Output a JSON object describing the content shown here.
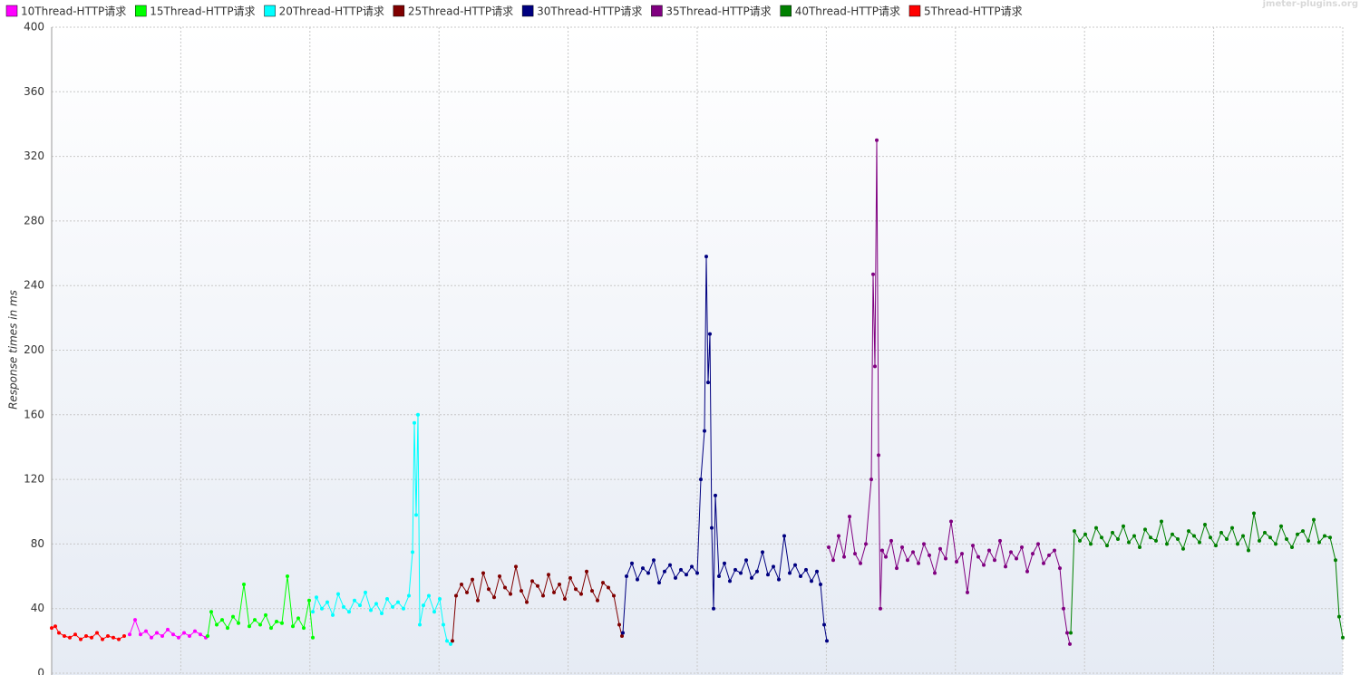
{
  "chart_data": {
    "type": "line",
    "watermark": "jmeter-plugins.org",
    "y_label": "Response times in ms",
    "ylim": [
      0,
      400
    ],
    "yticks": [
      0,
      40,
      80,
      120,
      160,
      200,
      240,
      280,
      320,
      360,
      400
    ],
    "xlim": [
      0,
      1424
    ],
    "xticks": [
      0,
      142.4,
      284.8,
      427.2,
      569.6,
      712,
      854.4,
      996.8,
      1139.2,
      1281.6,
      1424
    ],
    "grid": true,
    "legend": "top",
    "series": [
      {
        "name": "10Thread-HTTP请求",
        "color": "#ff00ff",
        "x": [
          86,
          92,
          98,
          104,
          110,
          116,
          122,
          128,
          134,
          140,
          146,
          152,
          158,
          164,
          170
        ],
        "values": [
          24,
          33,
          24,
          26,
          22,
          25,
          23,
          27,
          24,
          22,
          25,
          23,
          26,
          24,
          22
        ]
      },
      {
        "name": "15Thread-HTTP请求",
        "color": "#00ff00",
        "x": [
          172,
          176,
          182,
          188,
          194,
          200,
          206,
          212,
          218,
          224,
          230,
          236,
          242,
          248,
          254,
          260,
          266,
          272,
          278,
          284,
          288
        ],
        "values": [
          23,
          38,
          30,
          33,
          28,
          35,
          31,
          55,
          29,
          33,
          30,
          36,
          28,
          32,
          31,
          60,
          29,
          34,
          28,
          45,
          22
        ]
      },
      {
        "name": "20Thread-HTTP请求",
        "color": "#00ffff",
        "x": [
          288,
          292,
          298,
          304,
          310,
          316,
          322,
          328,
          334,
          340,
          346,
          352,
          358,
          364,
          370,
          376,
          382,
          388,
          394,
          398,
          400,
          402,
          404,
          406,
          410,
          416,
          422,
          428,
          432,
          436,
          440
        ],
        "values": [
          38,
          47,
          40,
          44,
          36,
          49,
          41,
          38,
          45,
          42,
          50,
          39,
          43,
          37,
          46,
          41,
          44,
          40,
          48,
          75,
          155,
          98,
          160,
          30,
          42,
          48,
          38,
          46,
          30,
          20,
          18
        ]
      },
      {
        "name": "25Thread-HTTP请求",
        "color": "#800000",
        "x": [
          442,
          446,
          452,
          458,
          464,
          470,
          476,
          482,
          488,
          494,
          500,
          506,
          512,
          518,
          524,
          530,
          536,
          542,
          548,
          554,
          560,
          566,
          572,
          578,
          584,
          590,
          596,
          602,
          608,
          614,
          620,
          626,
          629
        ],
        "values": [
          20,
          48,
          55,
          50,
          58,
          45,
          62,
          52,
          47,
          60,
          53,
          49,
          66,
          51,
          44,
          57,
          54,
          48,
          61,
          50,
          55,
          46,
          59,
          52,
          49,
          63,
          51,
          45,
          56,
          53,
          48,
          30,
          23
        ]
      },
      {
        "name": "30Thread-HTTP请求",
        "color": "#000080",
        "x": [
          630,
          634,
          640,
          646,
          652,
          658,
          664,
          670,
          676,
          682,
          688,
          694,
          700,
          706,
          712,
          716,
          720,
          722,
          724,
          726,
          728,
          730,
          732,
          736,
          742,
          748,
          754,
          760,
          766,
          772,
          778,
          784,
          790,
          796,
          802,
          808,
          814,
          820,
          826,
          832,
          838,
          844,
          848,
          852,
          855
        ],
        "values": [
          25,
          60,
          68,
          58,
          65,
          62,
          70,
          56,
          63,
          67,
          59,
          64,
          61,
          66,
          62,
          120,
          150,
          258,
          180,
          210,
          90,
          40,
          110,
          60,
          68,
          57,
          64,
          62,
          70,
          59,
          63,
          75,
          61,
          66,
          58,
          85,
          62,
          67,
          60,
          64,
          57,
          63,
          55,
          30,
          20
        ]
      },
      {
        "name": "35Thread-HTTP请求",
        "color": "#800080",
        "x": [
          857,
          862,
          868,
          874,
          880,
          886,
          892,
          898,
          904,
          906,
          908,
          910,
          912,
          914,
          916,
          920,
          926,
          932,
          938,
          944,
          950,
          956,
          962,
          968,
          974,
          980,
          986,
          992,
          998,
          1004,
          1010,
          1016,
          1022,
          1028,
          1034,
          1040,
          1046,
          1052,
          1058,
          1064,
          1070,
          1076,
          1082,
          1088,
          1094,
          1100,
          1106,
          1112,
          1116,
          1120,
          1123
        ],
        "values": [
          78,
          70,
          85,
          72,
          97,
          74,
          68,
          80,
          120,
          247,
          190,
          330,
          135,
          40,
          76,
          72,
          82,
          65,
          78,
          70,
          75,
          68,
          80,
          73,
          62,
          77,
          71,
          94,
          69,
          74,
          50,
          79,
          72,
          67,
          76,
          70,
          82,
          66,
          75,
          71,
          78,
          63,
          74,
          80,
          68,
          73,
          76,
          65,
          40,
          25,
          18
        ]
      },
      {
        "name": "40Thread-HTTP请求",
        "color": "#008000",
        "x": [
          1124,
          1128,
          1134,
          1140,
          1146,
          1152,
          1158,
          1164,
          1170,
          1176,
          1182,
          1188,
          1194,
          1200,
          1206,
          1212,
          1218,
          1224,
          1230,
          1236,
          1242,
          1248,
          1254,
          1260,
          1266,
          1272,
          1278,
          1284,
          1290,
          1296,
          1302,
          1308,
          1314,
          1320,
          1326,
          1332,
          1338,
          1344,
          1350,
          1356,
          1362,
          1368,
          1374,
          1380,
          1386,
          1392,
          1398,
          1404,
          1410,
          1416,
          1420,
          1424
        ],
        "values": [
          25,
          88,
          82,
          86,
          80,
          90,
          84,
          79,
          87,
          83,
          91,
          81,
          85,
          78,
          89,
          84,
          82,
          94,
          80,
          86,
          83,
          77,
          88,
          85,
          81,
          92,
          84,
          79,
          87,
          83,
          90,
          80,
          85,
          76,
          99,
          82,
          87,
          84,
          80,
          91,
          83,
          78,
          86,
          88,
          82,
          95,
          81,
          85,
          84,
          70,
          35,
          22
        ]
      },
      {
        "name": "5Thread-HTTP请求",
        "color": "#ff0000",
        "x": [
          0,
          4,
          8,
          14,
          20,
          26,
          32,
          38,
          44,
          50,
          56,
          62,
          68,
          74,
          80
        ],
        "values": [
          28,
          29,
          25,
          23,
          22,
          24,
          21,
          23,
          22,
          25,
          21,
          23,
          22,
          21,
          23
        ]
      }
    ]
  }
}
